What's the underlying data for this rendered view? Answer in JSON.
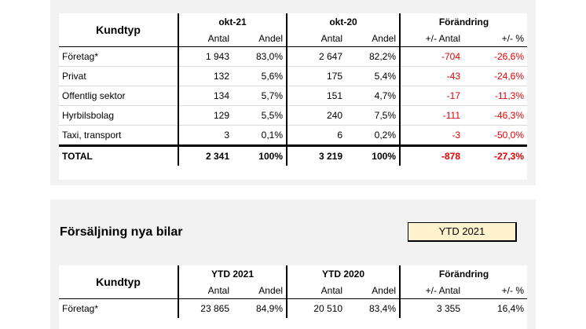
{
  "table1": {
    "kundtyp_label": "Kundtyp",
    "period1": "okt-21",
    "period2": "okt-20",
    "change": "Förändring",
    "col_antal": "Antal",
    "col_andel": "Andel",
    "col_diff_antal": "+/- Antal",
    "col_diff_pct": "+/- %",
    "rows": [
      {
        "name": "Företag*",
        "a1": "1 943",
        "p1": "83,0%",
        "a2": "2 647",
        "p2": "82,2%",
        "d": "-704",
        "dp": "-26,6%"
      },
      {
        "name": "Privat",
        "a1": "132",
        "p1": "5,6%",
        "a2": "175",
        "p2": "5,4%",
        "d": "-43",
        "dp": "-24,6%"
      },
      {
        "name": "Offentlig sektor",
        "a1": "134",
        "p1": "5,7%",
        "a2": "151",
        "p2": "4,7%",
        "d": "-17",
        "dp": "-11,3%"
      },
      {
        "name": "Hyrbilsbolag",
        "a1": "129",
        "p1": "5,5%",
        "a2": "240",
        "p2": "7,5%",
        "d": "-111",
        "dp": "-46,3%"
      },
      {
        "name": "Taxi, transport",
        "a1": "3",
        "p1": "0,1%",
        "a2": "6",
        "p2": "0,2%",
        "d": "-3",
        "dp": "-50,0%"
      }
    ],
    "total": {
      "name": "TOTAL",
      "a1": "2 341",
      "p1": "100%",
      "a2": "3 219",
      "p2": "100%",
      "d": "-878",
      "dp": "-27,3%"
    }
  },
  "section2": {
    "title": "Försäljning nya bilar",
    "period_box": "YTD 2021"
  },
  "table2": {
    "kundtyp_label": "Kundtyp",
    "period1": "YTD 2021",
    "period2": "YTD 2020",
    "change": "Förändring",
    "col_antal": "Antal",
    "col_andel": "Andel",
    "col_diff_antal": "+/- Antal",
    "col_diff_pct": "+/- %",
    "rows": [
      {
        "name": "Företag*",
        "a1": "23 865",
        "p1": "84,9%",
        "a2": "20 510",
        "p2": "83,4%",
        "d": "3 355",
        "dp": "16,4%"
      }
    ]
  },
  "colors": {
    "negative": "#e00000",
    "panel_bg": "#f2f2f2",
    "box_bg": "#fff2cc"
  }
}
